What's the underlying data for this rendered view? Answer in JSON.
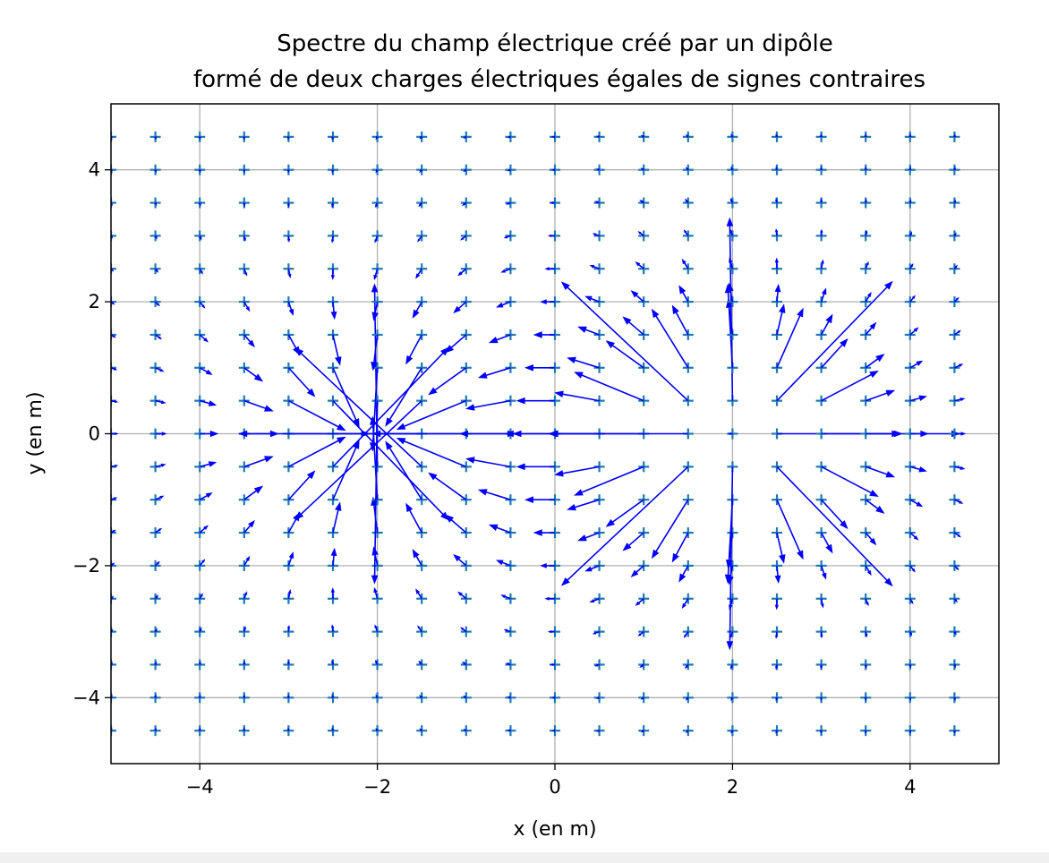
{
  "chart_data": {
    "type": "quiver",
    "title": "Spectre du champ électrique créé par un dipôle\nformé de deux charges électriques égales de signes contraires",
    "title_lines": [
      "Spectre du champ électrique créé par un dipôle",
      "formé de deux charges électriques égales de signes contraires"
    ],
    "xlabel": "x (en m)",
    "ylabel": "y (en m)",
    "xlim": [
      -5,
      5
    ],
    "ylim": [
      -5,
      5
    ],
    "xticks": [
      -4,
      -2,
      0,
      2,
      4
    ],
    "yticks": [
      -4,
      -2,
      0,
      2,
      4
    ],
    "xtick_labels": [
      "−4",
      "−2",
      "0",
      "2",
      "4"
    ],
    "ytick_labels": [
      "−4",
      "−2",
      "0",
      "2",
      "4"
    ],
    "grid": true,
    "charges": [
      {
        "x": 2,
        "y": 0,
        "q": 1
      },
      {
        "x": -2,
        "y": 0,
        "q": -1
      }
    ],
    "grid_points": {
      "x_start": -5,
      "x_stop": 4.5,
      "y_start": -4.5,
      "y_stop": 4.5,
      "step": 0.5
    },
    "marker": "+",
    "marker_color": "#1f77b4",
    "arrow_color": "#0000ff"
  }
}
